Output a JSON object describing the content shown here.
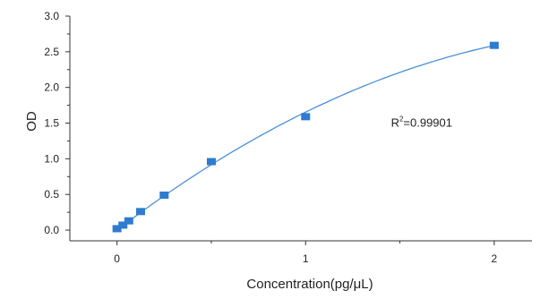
{
  "chart_data": {
    "type": "scatter",
    "xlabel": "Concentration(pg/μL)",
    "ylabel": "OD",
    "xlim": [
      -0.25,
      2.2
    ],
    "ylim": [
      -0.15,
      3.0
    ],
    "x_ticks": [
      0,
      1,
      2
    ],
    "x_tick_labels": [
      "0",
      "1",
      "2"
    ],
    "y_ticks": [
      0.0,
      0.5,
      1.0,
      1.5,
      2.0,
      2.5,
      3.0
    ],
    "y_tick_labels": [
      "0.0",
      "0.5",
      "1.0",
      "1.5",
      "2.0",
      "2.5",
      "3.0"
    ],
    "grid": false,
    "series": [
      {
        "points": [
          {
            "x": 0,
            "y": 0.02
          },
          {
            "x": 0.03125,
            "y": 0.07
          },
          {
            "x": 0.0625,
            "y": 0.13
          },
          {
            "x": 0.125,
            "y": 0.26
          },
          {
            "x": 0.25,
            "y": 0.49
          },
          {
            "x": 0.5,
            "y": 0.96
          },
          {
            "x": 1,
            "y": 1.59
          },
          {
            "x": 2,
            "y": 2.59
          }
        ],
        "marker": "square",
        "color": "#2e7bcf"
      }
    ],
    "fit_curve": {
      "type": "polynomial",
      "coefficients": [
        0.0,
        2.014,
        -0.36
      ],
      "color": "#4a90d9"
    },
    "annotations": [
      {
        "text_base": "R",
        "text_sup": "2",
        "text_value": "=0.99901",
        "x": 1.5,
        "y": 1.45
      }
    ]
  }
}
